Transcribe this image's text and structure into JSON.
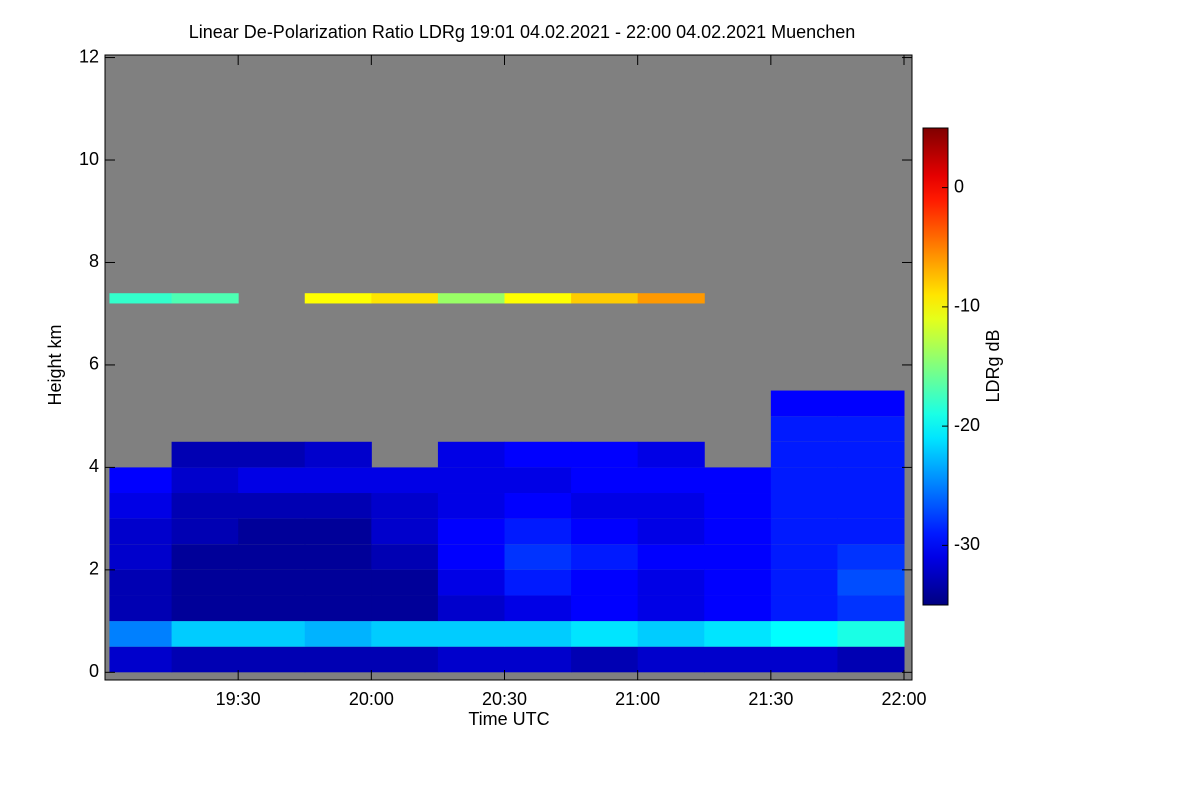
{
  "chart_data": {
    "type": "heatmap",
    "title": "Linear De-Polarization Ratio LDRg   19:01 04.02.2021 - 22:00 04.02.2021 Muenchen",
    "x_label": "Time UTC",
    "y_label": "Height km",
    "colorbar_label": "LDRg dB",
    "xlim": [
      19.0,
      22.03
    ],
    "xticks": [
      {
        "value": 19.5,
        "label": "19:30"
      },
      {
        "value": 20.0,
        "label": "20:00"
      },
      {
        "value": 20.5,
        "label": "20:30"
      },
      {
        "value": 21.0,
        "label": "21:00"
      },
      {
        "value": 21.5,
        "label": "21:30"
      },
      {
        "value": 22.0,
        "label": "22:00"
      }
    ],
    "ylim": [
      -0.15,
      12.05
    ],
    "yticks": [
      0,
      2,
      4,
      6,
      8,
      10,
      12
    ],
    "zlim": [
      -35,
      5
    ],
    "zticks": [
      -30,
      -20,
      -10,
      0
    ],
    "colormap": "jet",
    "missing_color": "#808080",
    "xbins": [
      19.0167,
      19.25,
      19.5,
      19.75,
      20.0,
      20.25,
      20.5,
      20.75,
      21.0,
      21.25,
      21.5,
      21.75,
      22.0
    ],
    "ybins": [
      0,
      0.5,
      1,
      1.5,
      2,
      2.5,
      3,
      3.5,
      4,
      4.5,
      5,
      5.5,
      7.2,
      7.4
    ],
    "z": [
      [
        -32,
        -33,
        -33,
        -33,
        -33,
        -32,
        -32,
        -33,
        -32,
        -32,
        -32,
        -33
      ],
      [
        -25,
        -22,
        -22,
        -23,
        -22,
        -22,
        -22,
        -21,
        -22,
        -21,
        -20,
        -19
      ],
      [
        -33,
        -34,
        -34,
        -34,
        -34,
        -32,
        -31,
        -30,
        -31,
        -30,
        -29,
        -28
      ],
      [
        -33,
        -34,
        -34,
        -34,
        -34,
        -31,
        -29,
        -30,
        -31,
        -30,
        -29,
        -27
      ],
      [
        -32,
        -34,
        -34,
        -34,
        -33,
        -30,
        -28,
        -29,
        -30,
        -30,
        -29,
        -28
      ],
      [
        -32,
        -33,
        -34,
        -34,
        -32,
        -30,
        -29,
        -30,
        -31,
        -30,
        -29,
        -29
      ],
      [
        -31,
        -33,
        -33,
        -33,
        -32,
        -31,
        -30,
        -31,
        -31,
        -30,
        -29,
        -29
      ],
      [
        -30,
        -32,
        -31,
        -31,
        -31,
        -31,
        -31,
        -30,
        -30,
        -30,
        -29,
        -29
      ],
      [
        null,
        -33,
        -33,
        -32,
        null,
        -31,
        -30,
        -30,
        -31,
        null,
        -29,
        -29
      ],
      [
        null,
        null,
        null,
        null,
        null,
        null,
        null,
        null,
        null,
        null,
        -29,
        -29
      ],
      [
        null,
        null,
        null,
        null,
        null,
        null,
        null,
        null,
        null,
        null,
        -30,
        -30
      ],
      [
        null,
        null,
        null,
        null,
        null,
        null,
        null,
        null,
        null,
        null,
        null,
        null
      ],
      [
        -18,
        -17,
        null,
        -10,
        -9,
        -14,
        -10,
        -8,
        -6,
        null,
        null,
        null
      ]
    ]
  }
}
